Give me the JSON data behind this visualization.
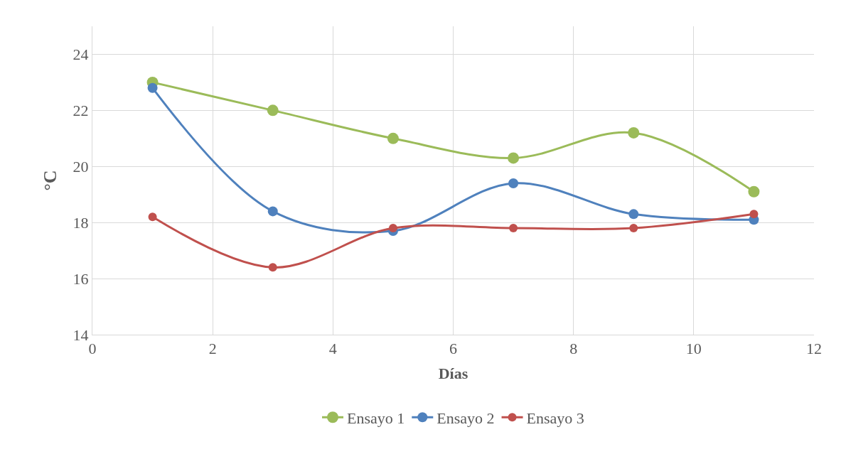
{
  "chart_data": {
    "type": "line",
    "xlabel": "Días",
    "ylabel": "°C",
    "x": [
      1,
      3,
      5,
      7,
      9,
      11
    ],
    "series": [
      {
        "name": "Ensayo 1",
        "color": "#9bbb59",
        "values": [
          23,
          22,
          21,
          20.3,
          21.2,
          19.1
        ]
      },
      {
        "name": "Ensayo 2",
        "color": "#4f81bd",
        "values": [
          22.8,
          18.4,
          17.7,
          19.4,
          18.3,
          18.1
        ]
      },
      {
        "name": "Ensayo 3",
        "color": "#c0504d",
        "values": [
          18.2,
          16.4,
          17.8,
          17.8,
          17.8,
          18.3
        ]
      }
    ],
    "xlim": [
      0,
      12
    ],
    "xticks": [
      0,
      2,
      4,
      6,
      8,
      10,
      12
    ],
    "ylim": [
      14,
      25
    ],
    "yticks": [
      14,
      16,
      18,
      20,
      22,
      24
    ],
    "grid": true,
    "legend": "bottom",
    "marker": "circle",
    "line_style": "solid"
  }
}
